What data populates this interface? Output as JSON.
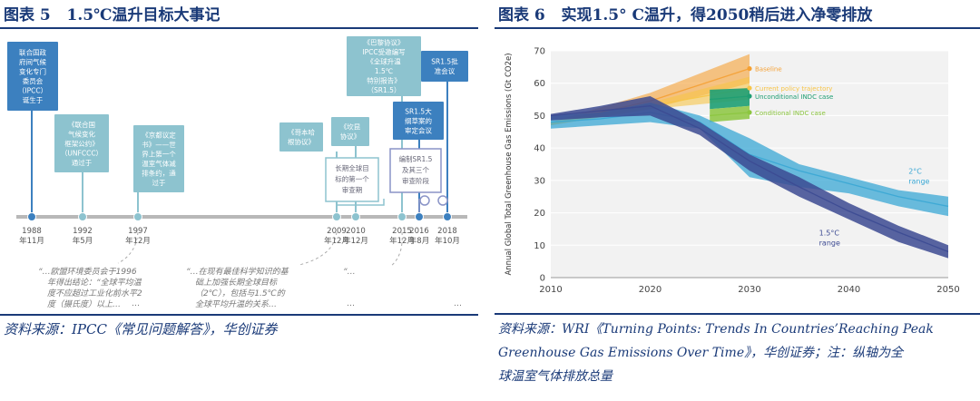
{
  "left": {
    "fig_label": "图表 5",
    "fig_title": "1.5℃温升目标大事记",
    "source": "资料来源：IPCC《常见问题解答》，华创证券",
    "events": [
      {
        "year": "1988",
        "month": "年11月",
        "style": "dark",
        "text": [
          "联合国政",
          "府间气候",
          "变化专门",
          "委员会",
          "（IPCC）",
          "诞生于"
        ]
      },
      {
        "year": "1992",
        "month": "年5月",
        "style": "light",
        "text": [
          "《联合国",
          "气候变化",
          "框架公约》",
          "（UNFCCC）",
          "通过于"
        ]
      },
      {
        "year": "1997",
        "month": "年12月",
        "style": "light",
        "text": [
          "《京都议定",
          "书》——世",
          "界上第一个",
          "温室气体减",
          "排条约，通",
          "过于"
        ]
      },
      {
        "year": "2009",
        "month": "年12月",
        "style": "light",
        "text": [
          "《哥本哈",
          "根协议》"
        ]
      },
      {
        "year": "2010",
        "month": "年12月",
        "style": "light",
        "text": [
          "《坎昆",
          "协议》"
        ]
      },
      {
        "year": "2015",
        "month": "年12月",
        "style": "light",
        "text": [
          "《巴黎协议》",
          "IPCC受邀编写",
          "《全球升温",
          "1.5℃",
          "特别报告》",
          "（SR1.5）"
        ]
      },
      {
        "year": "2016",
        "month": "年8月",
        "style": "dark",
        "text": [
          "SR1.5大",
          "纲草案的",
          "审定会议"
        ]
      },
      {
        "year": "2018",
        "month": "年10月",
        "style": "dark",
        "text": [
          "SR1.5批",
          "准会议"
        ]
      }
    ],
    "outline_boxes": [
      [
        "长期全球目",
        "标的第一个",
        "审查期"
      ],
      [
        "编制SR1.5",
        "及其三个",
        "审查阶段"
      ]
    ],
    "quotes": [
      [
        "“…欧盟环境委员会于1996",
        "年得出结论：“全球平均温",
        "度不应超过工业化前水平2",
        "度（摄氏度）以上…"
      ],
      [
        "“…在现有最佳科学知识的基",
        "础上加强长期全球目标",
        "（2℃），包括与1.5℃的",
        "全球平均升温的关系…"
      ],
      [
        "“…"
      ]
    ]
  },
  "right": {
    "fig_label": "图表 6",
    "fig_title": "实现1.5° C温升，得2050稍后进入净零排放",
    "source_lines": [
      "资料来源：WRI《Turning Points: Trends In Countries’Reaching Peak",
      "Greenhouse Gas Emissions Over Time》，华创证券；注：纵轴为全",
      "球温室气体排放总量"
    ]
  },
  "chart_data": {
    "type": "area",
    "title": "",
    "xlabel": "",
    "ylabel": "Annual Global Total Greenhouse Gas Emissions (Gt CO2e)",
    "xlim": [
      2010,
      2050
    ],
    "ylim": [
      0,
      70
    ],
    "xticks": [
      "2010",
      "2020",
      "2030",
      "2040",
      "2050"
    ],
    "yticks": [
      "0",
      "10",
      "20",
      "30",
      "40",
      "50",
      "60",
      "70"
    ],
    "colors": {
      "baseline": "#f5a033",
      "current_policy": "#f7c548",
      "unconditional": "#1e9e73",
      "conditional": "#8cc63f",
      "two_deg": "#3aa7d4",
      "one_five": "#3c4a92"
    },
    "series": [
      {
        "name": "Baseline",
        "kind": "band",
        "x": [
          2010,
          2020,
          2030
        ],
        "lower": [
          47,
          52,
          60
        ],
        "upper": [
          48,
          57,
          69
        ],
        "mid": [
          47.5,
          54.5,
          64.5
        ]
      },
      {
        "name": "Current policy trajectory",
        "kind": "band",
        "x": [
          2010,
          2020,
          2030
        ],
        "lower": [
          47,
          52,
          55
        ],
        "upper": [
          48,
          54,
          62
        ],
        "mid": [
          47.5,
          53,
          58.5
        ]
      },
      {
        "name": "Unconditional INDC case",
        "kind": "band",
        "x": [
          2026,
          2030
        ],
        "lower": [
          52,
          53
        ],
        "upper": [
          58,
          58.5
        ],
        "mid": [
          55,
          56
        ]
      },
      {
        "name": "Conditional INDC case",
        "kind": "band",
        "x": [
          2026,
          2030
        ],
        "lower": [
          48,
          49
        ],
        "upper": [
          52,
          53
        ],
        "mid": [
          50,
          51
        ]
      },
      {
        "name": "2°C range",
        "kind": "band",
        "x": [
          2010,
          2015,
          2020,
          2025,
          2030,
          2035,
          2040,
          2045,
          2050
        ],
        "lower": [
          46,
          47,
          48,
          46,
          31,
          28,
          26,
          22,
          19
        ],
        "upper": [
          50,
          51,
          54,
          50,
          43,
          35,
          31,
          27,
          25
        ],
        "mid": [
          48,
          49,
          51,
          48,
          38,
          33,
          29,
          25,
          22
        ]
      },
      {
        "name": "1.5°C range",
        "kind": "band",
        "x": [
          2010,
          2015,
          2020,
          2025,
          2030,
          2035,
          2040,
          2045,
          2050
        ],
        "lower": [
          48.5,
          49.5,
          50,
          44,
          33,
          25,
          18,
          11,
          6
        ],
        "upper": [
          50.5,
          53,
          56,
          48,
          38,
          31,
          23,
          16,
          10
        ],
        "mid": [
          50,
          51.5,
          53,
          46,
          36,
          28,
          20.5,
          14,
          8
        ]
      }
    ]
  }
}
